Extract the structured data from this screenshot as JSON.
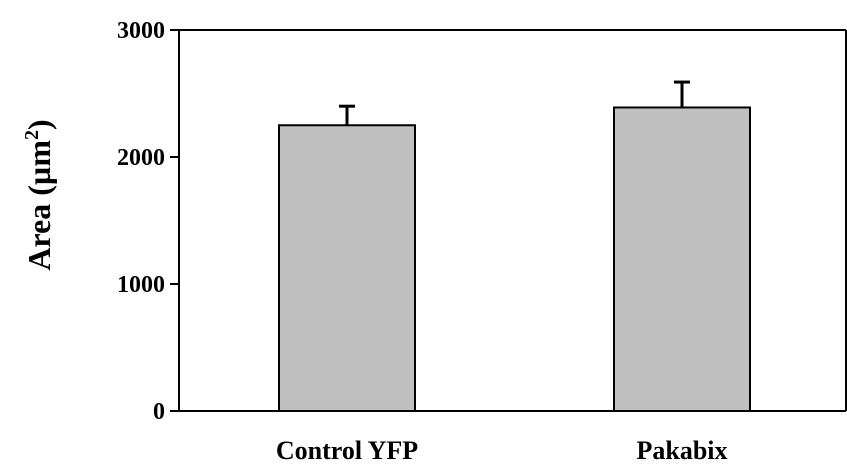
{
  "chart_data": {
    "type": "bar",
    "title": "",
    "xlabel": "",
    "ylabel": "Area (µm²)",
    "ylabel_parts": {
      "main": "Area (µm",
      "sup": "2",
      "close": ")"
    },
    "ylim": [
      0,
      3000
    ],
    "yticks": [
      0,
      1000,
      2000,
      3000
    ],
    "ytick_labels": [
      "0",
      "1000",
      "2000",
      "3000"
    ],
    "categories": [
      "Control YFP",
      "Pakabix"
    ],
    "values": [
      2250,
      2390
    ],
    "error_upper": [
      150,
      200
    ],
    "grid": false,
    "legend": "none",
    "bar_color": "#c0c0c0",
    "edge_color": "#000000"
  }
}
